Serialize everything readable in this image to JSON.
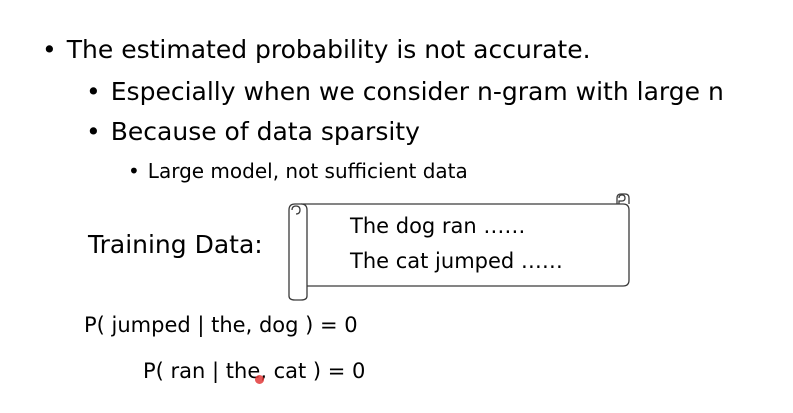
{
  "bullets": {
    "level1": "The estimated probability is not accurate.",
    "level2": [
      "Especially when we consider n-gram with large n",
      "Because of data sparsity"
    ],
    "level3": "Large model, not sufficient data",
    "glyph": "•"
  },
  "training": {
    "label": "Training Data:",
    "lines": [
      "The dog ran ……",
      "The cat jumped ……"
    ]
  },
  "formulas": [
    "P( jumped | the, dog ) = 0",
    "P( ran | the, cat ) = 0"
  ],
  "colors": {
    "text": "#000000",
    "scroll_stroke": "#3a3a3a",
    "cursor": "#e23a3a"
  }
}
